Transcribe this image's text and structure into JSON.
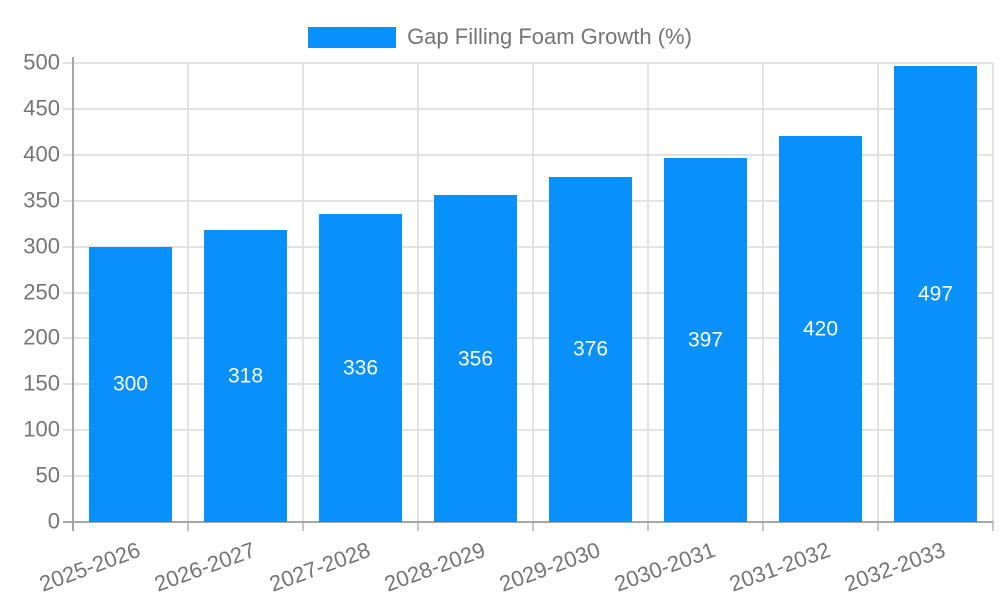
{
  "chart_data": {
    "type": "bar",
    "title": "",
    "legend": {
      "label": "Gap Filling Foam Growth (%)",
      "position": "top-center"
    },
    "categories": [
      "2025-2026",
      "2026-2027",
      "2027-2028",
      "2028-2029",
      "2029-2030",
      "2030-2031",
      "2031-2032",
      "2032-2033"
    ],
    "series": [
      {
        "name": "Gap Filling Foam Growth (%)",
        "values": [
          300,
          318,
          336,
          356,
          376,
          397,
          420,
          497
        ]
      }
    ],
    "xlabel": "",
    "ylabel": "",
    "ylim": [
      0,
      500
    ],
    "ytick_step": 50,
    "yticks": [
      0,
      50,
      100,
      150,
      200,
      250,
      300,
      350,
      400,
      450,
      500
    ],
    "grid": {
      "horizontal": true,
      "vertical": true
    },
    "x_label_rotation_deg": -20,
    "value_labels_position": "inside-center",
    "colors": {
      "bar": "#0890FB",
      "bar_label_text": "#FFFFFF",
      "tick_text": "#757575",
      "grid": "#E3E3E3",
      "axis": "#A6A6A6",
      "minor_tick": "#C6C6C6"
    }
  }
}
